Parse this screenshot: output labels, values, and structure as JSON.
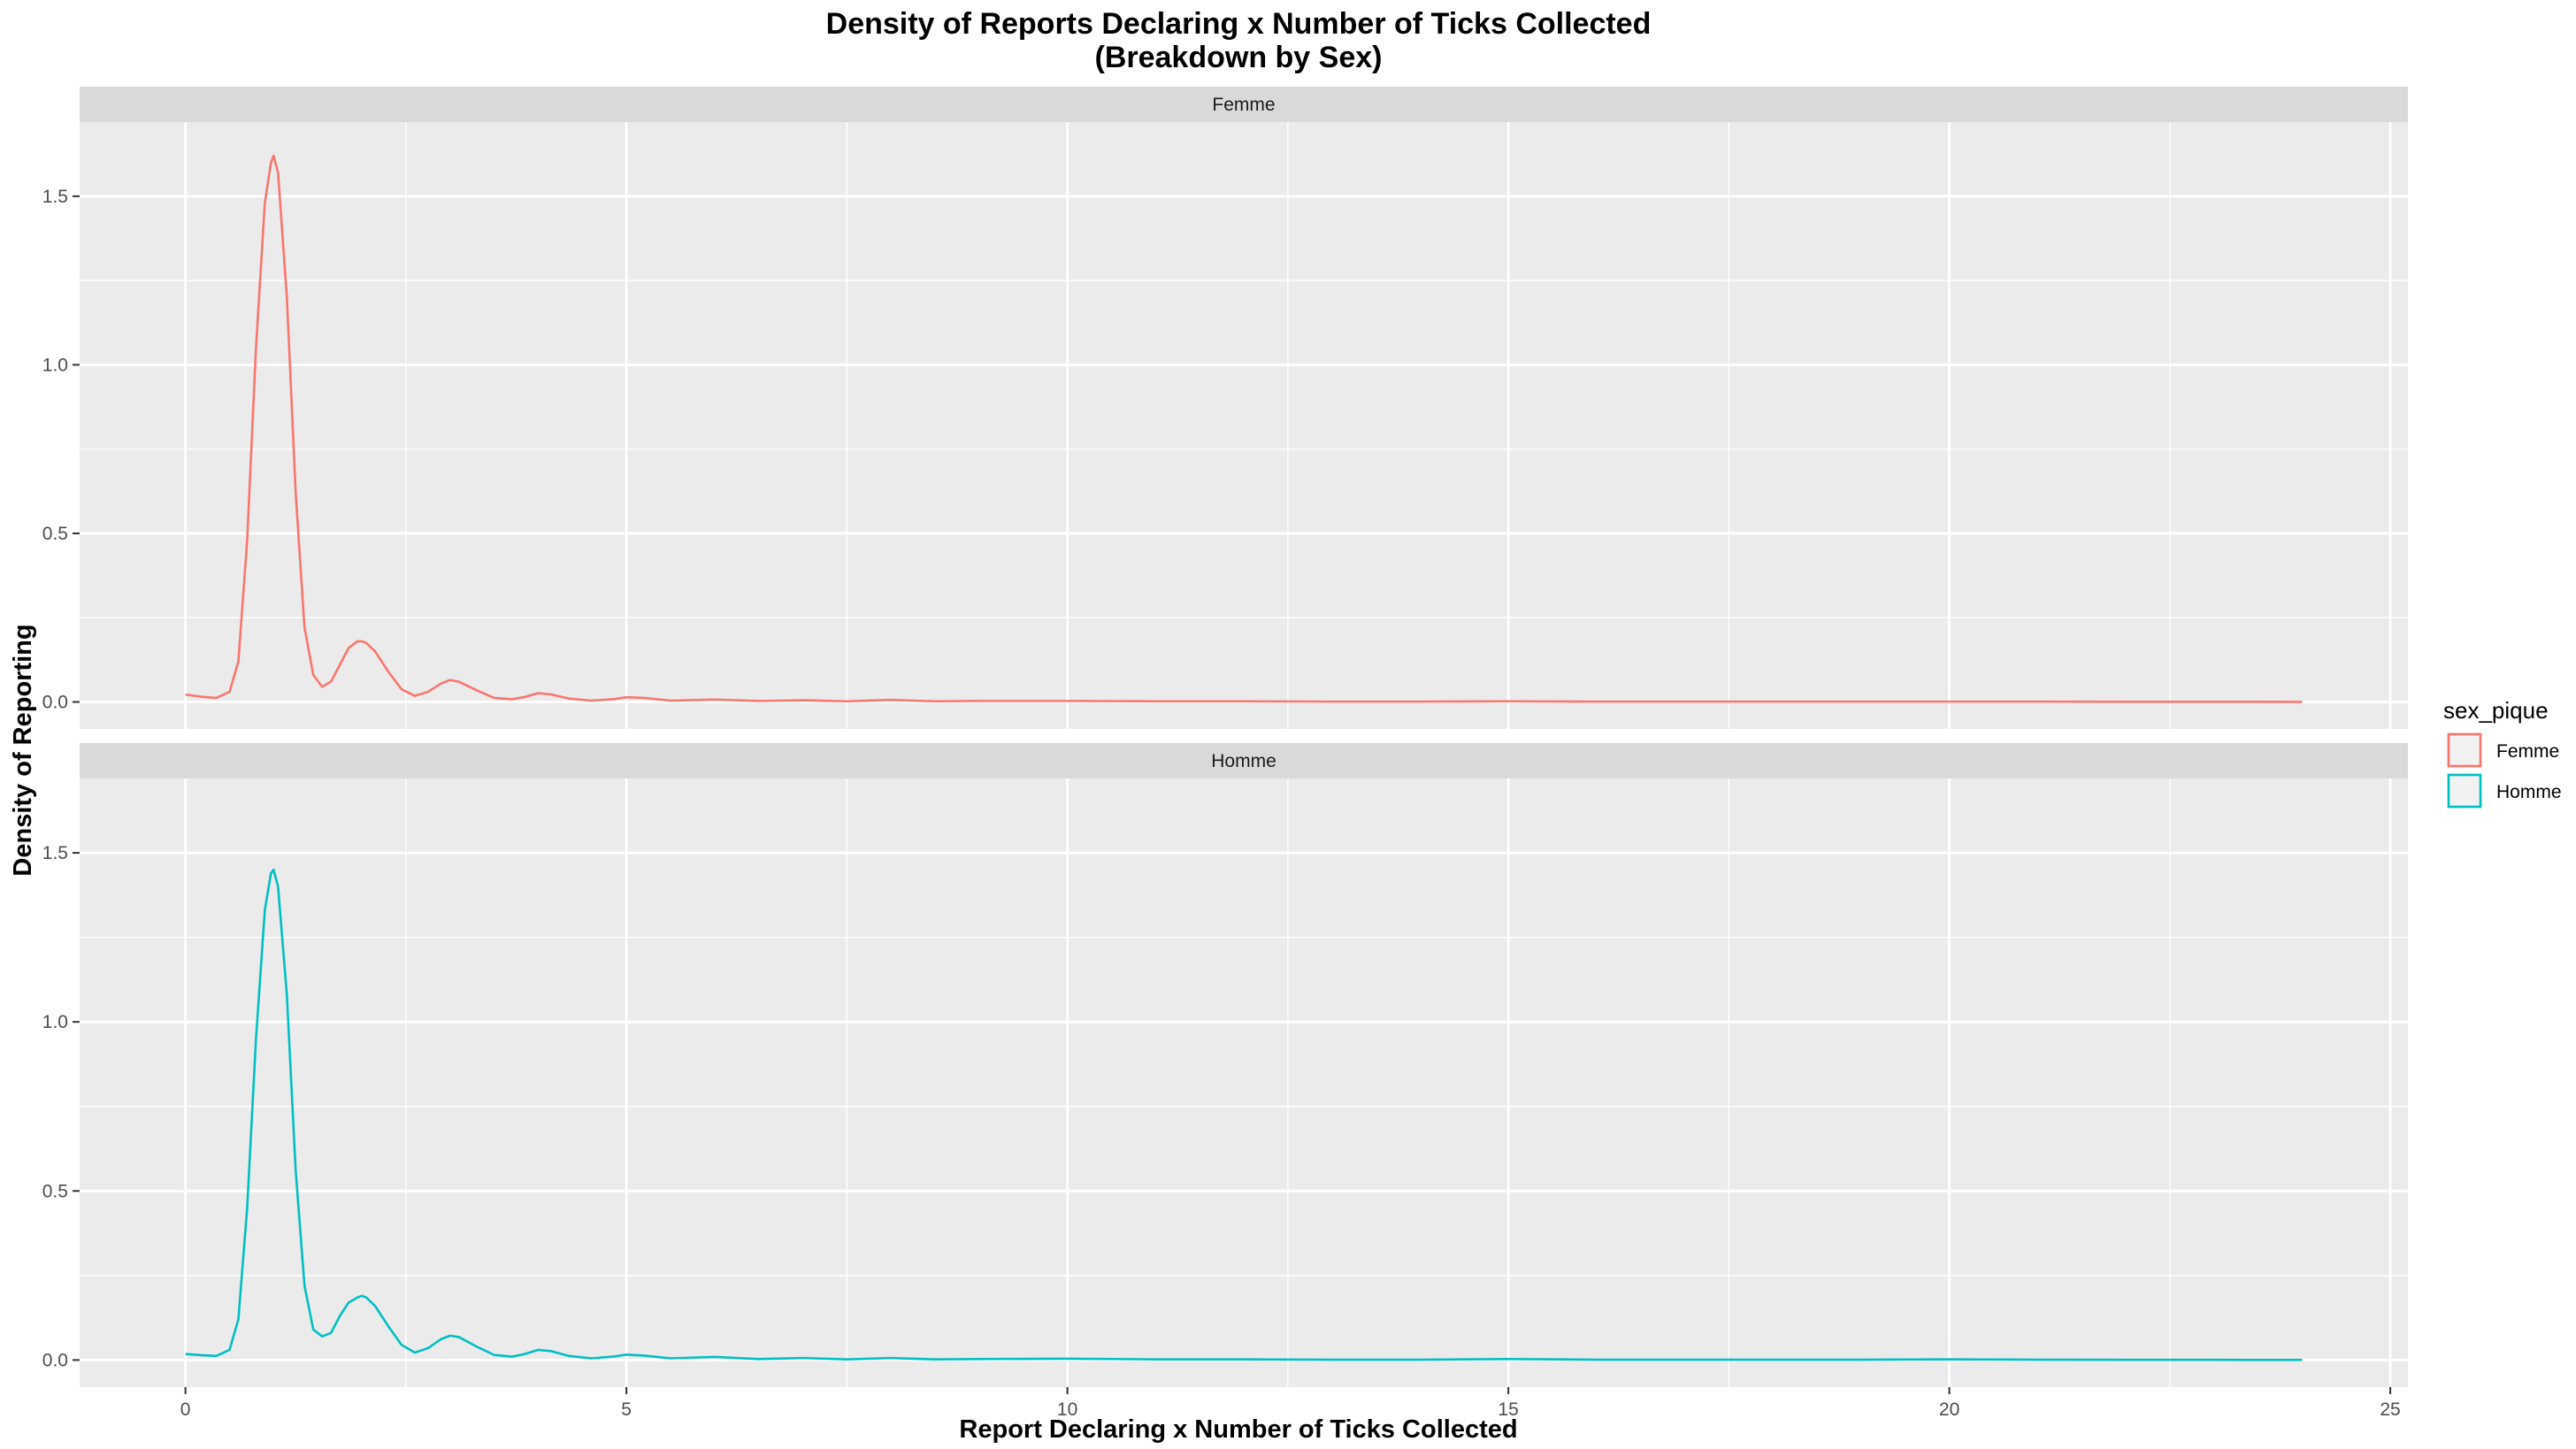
{
  "chart_data": {
    "type": "line",
    "title": "Density of Reports Declaring x Number of Ticks Collected",
    "subtitle": "(Breakdown by Sex)",
    "xlabel": "Report Declaring x Number of Ticks Collected",
    "ylabel": "Density of Reporting",
    "xlim": [
      -1.2,
      25.2
    ],
    "ylim": [
      -0.08,
      1.72
    ],
    "x_ticks": [
      0,
      5,
      10,
      15,
      20,
      25
    ],
    "x_tick_labels": [
      "0",
      "5",
      "10",
      "15",
      "20",
      "25"
    ],
    "y_ticks": [
      0.0,
      0.5,
      1.0,
      1.5
    ],
    "y_tick_labels": [
      "0.0",
      "0.5",
      "1.0",
      "1.5"
    ],
    "grid": true,
    "legend": {
      "title": "sex_pique",
      "placement": "right",
      "entries": [
        "Femme",
        "Homme"
      ]
    },
    "colors": {
      "Femme": "#F8766D",
      "Homme": "#00BFC4"
    },
    "series": [
      {
        "name": "Femme",
        "facet": "Femme",
        "x": [
          0,
          0.2,
          0.35,
          0.5,
          0.6,
          0.7,
          0.8,
          0.9,
          0.97,
          1.0,
          1.05,
          1.15,
          1.25,
          1.35,
          1.45,
          1.55,
          1.65,
          1.75,
          1.85,
          1.95,
          2.0,
          2.05,
          2.15,
          2.3,
          2.45,
          2.6,
          2.75,
          2.9,
          3.0,
          3.1,
          3.3,
          3.5,
          3.7,
          3.85,
          4.0,
          4.15,
          4.35,
          4.6,
          4.85,
          5.0,
          5.2,
          5.5,
          6.0,
          6.5,
          7.0,
          7.5,
          8.0,
          8.5,
          9.0,
          10.0,
          11.0,
          12.0,
          13.0,
          14.0,
          15.0,
          16.0,
          17.0,
          18.0,
          19.0,
          20.0,
          21.0,
          22.0,
          23.0,
          24.0
        ],
        "y": [
          0.022,
          0.015,
          0.012,
          0.03,
          0.12,
          0.48,
          1.05,
          1.48,
          1.6,
          1.62,
          1.57,
          1.2,
          0.62,
          0.22,
          0.08,
          0.045,
          0.06,
          0.11,
          0.16,
          0.18,
          0.18,
          0.175,
          0.15,
          0.09,
          0.038,
          0.018,
          0.03,
          0.055,
          0.065,
          0.06,
          0.035,
          0.012,
          0.008,
          0.015,
          0.026,
          0.022,
          0.01,
          0.004,
          0.008,
          0.014,
          0.012,
          0.004,
          0.007,
          0.003,
          0.005,
          0.002,
          0.006,
          0.002,
          0.003,
          0.003,
          0.002,
          0.002,
          0.001,
          0.001,
          0.002,
          0.001,
          0.001,
          0.001,
          0.001,
          0.001,
          0.001,
          0.0005,
          0.0005,
          0.0002
        ]
      },
      {
        "name": "Homme",
        "facet": "Homme",
        "x": [
          0,
          0.2,
          0.35,
          0.5,
          0.6,
          0.7,
          0.8,
          0.9,
          0.97,
          1.0,
          1.05,
          1.15,
          1.25,
          1.35,
          1.45,
          1.55,
          1.65,
          1.75,
          1.85,
          1.95,
          2.0,
          2.05,
          2.15,
          2.3,
          2.45,
          2.6,
          2.75,
          2.9,
          3.0,
          3.1,
          3.3,
          3.5,
          3.7,
          3.85,
          4.0,
          4.15,
          4.35,
          4.6,
          4.85,
          5.0,
          5.2,
          5.5,
          6.0,
          6.5,
          7.0,
          7.5,
          8.0,
          8.5,
          9.0,
          10.0,
          11.0,
          12.0,
          13.0,
          14.0,
          15.0,
          16.0,
          17.0,
          18.0,
          19.0,
          20.0,
          21.0,
          22.0,
          23.0,
          24.0
        ],
        "y": [
          0.018,
          0.014,
          0.012,
          0.03,
          0.12,
          0.45,
          0.95,
          1.33,
          1.44,
          1.45,
          1.4,
          1.08,
          0.56,
          0.22,
          0.09,
          0.07,
          0.08,
          0.13,
          0.17,
          0.185,
          0.19,
          0.185,
          0.16,
          0.1,
          0.045,
          0.022,
          0.035,
          0.062,
          0.072,
          0.068,
          0.04,
          0.015,
          0.01,
          0.018,
          0.03,
          0.026,
          0.012,
          0.005,
          0.01,
          0.016,
          0.013,
          0.005,
          0.009,
          0.003,
          0.006,
          0.002,
          0.006,
          0.002,
          0.003,
          0.004,
          0.002,
          0.002,
          0.001,
          0.001,
          0.003,
          0.001,
          0.001,
          0.001,
          0.001,
          0.002,
          0.001,
          0.0005,
          0.0005,
          0.0002
        ]
      }
    ]
  }
}
